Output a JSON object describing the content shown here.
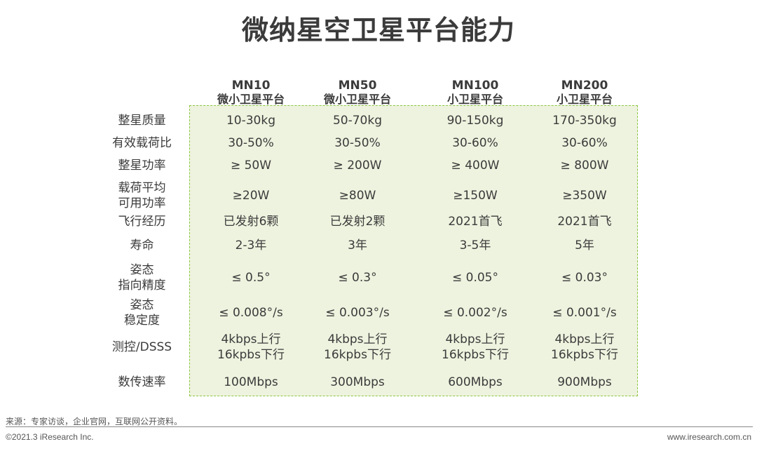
{
  "title": "微纳星空卫星平台能力",
  "columns": [
    {
      "model": "MN10",
      "type": "微小卫星平台"
    },
    {
      "model": "MN50",
      "type": "微小卫星平台"
    },
    {
      "model": "MN100",
      "type": "小卫星平台"
    },
    {
      "model": "MN200",
      "type": "小卫星平台"
    }
  ],
  "rows": [
    {
      "label": [
        "整星质量"
      ],
      "cells": [
        [
          "10-30kg"
        ],
        [
          "50-70kg"
        ],
        [
          "90-150kg"
        ],
        [
          "170-350kg"
        ]
      ]
    },
    {
      "label": [
        "有效载荷比"
      ],
      "cells": [
        [
          "30-50%"
        ],
        [
          "30-50%"
        ],
        [
          "30-60%"
        ],
        [
          "30-60%"
        ]
      ]
    },
    {
      "label": [
        "整星功率"
      ],
      "cells": [
        [
          "≥ 50W"
        ],
        [
          "≥ 200W"
        ],
        [
          "≥ 400W"
        ],
        [
          "≥ 800W"
        ]
      ]
    },
    {
      "label": [
        "载荷平均",
        "可用功率"
      ],
      "cells": [
        [
          "≥20W"
        ],
        [
          "≥80W"
        ],
        [
          "≥150W"
        ],
        [
          "≥350W"
        ]
      ]
    },
    {
      "label": [
        "飞行经历"
      ],
      "cells": [
        [
          "已发射6颗"
        ],
        [
          "已发射2颗"
        ],
        [
          "2021首飞"
        ],
        [
          "2021首飞"
        ]
      ]
    },
    {
      "label": [
        "寿命"
      ],
      "cells": [
        [
          "2-3年"
        ],
        [
          "3年"
        ],
        [
          "3-5年"
        ],
        [
          "5年"
        ]
      ]
    },
    {
      "label": [
        "姿态",
        "指向精度"
      ],
      "cells": [
        [
          "≤ 0.5°"
        ],
        [
          "≤ 0.3°"
        ],
        [
          "≤ 0.05°"
        ],
        [
          "≤ 0.03°"
        ]
      ]
    },
    {
      "label": [
        "姿态",
        "稳定度"
      ],
      "cells": [
        [
          "≤ 0.008°/s"
        ],
        [
          "≤ 0.003°/s"
        ],
        [
          "≤ 0.002°/s"
        ],
        [
          "≤ 0.001°/s"
        ]
      ]
    },
    {
      "label": [
        "测控/DSSS"
      ],
      "cells": [
        [
          "4kbps上行",
          "16kpbs下行"
        ],
        [
          "4kbps上行",
          "16kpbs下行"
        ],
        [
          "4kbps上行",
          "16kpbs下行"
        ],
        [
          "4kbps上行",
          "16kpbs下行"
        ]
      ]
    },
    {
      "label": [
        "数传速率"
      ],
      "cells": [
        [
          "100Mbps"
        ],
        [
          "300Mbps"
        ],
        [
          "600Mbps"
        ],
        [
          "900Mbps"
        ]
      ]
    }
  ],
  "footer": {
    "source": "来源：专家访谈，企业官网，互联网公开资料。",
    "copyright": "©2021.3 iResearch Inc.",
    "url": "www.iresearch.com.cn"
  },
  "colors": {
    "panel_fill": "#eef3df",
    "panel_border": "#8cc63f"
  }
}
